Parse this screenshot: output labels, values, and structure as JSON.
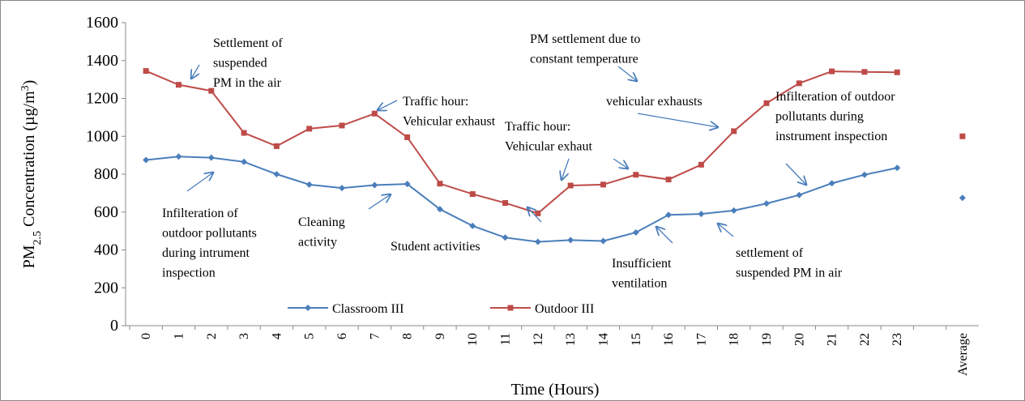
{
  "chart_data": {
    "type": "line",
    "y_label": {
      "prefix": "PM",
      "sub": "2.5",
      "middle": " Concentration (µg/m",
      "sup": "3",
      "suffix": ")"
    },
    "x_label": "Time (Hours)",
    "categories": [
      "0",
      "1",
      "2",
      "3",
      "4",
      "5",
      "6",
      "7",
      "8",
      "9",
      "10",
      "11",
      "12",
      "13",
      "14",
      "15",
      "16",
      "17",
      "18",
      "19",
      "20",
      "21",
      "22",
      "23",
      null,
      "Average"
    ],
    "series": [
      {
        "name": "Classroom III",
        "color": "#4a7ebb",
        "marker": "diamond",
        "values": [
          875,
          893,
          887,
          865,
          800,
          745,
          727,
          742,
          748,
          615,
          527,
          465,
          443,
          452,
          447,
          492,
          585,
          590,
          608,
          645,
          690,
          752,
          797,
          833,
          null,
          675
        ]
      },
      {
        "name": "Outdoor III",
        "color": "#be4b48",
        "marker": "square",
        "values": [
          1345,
          1272,
          1240,
          1018,
          948,
          1040,
          1057,
          1120,
          995,
          750,
          695,
          648,
          593,
          740,
          745,
          797,
          772,
          850,
          1027,
          1175,
          1280,
          1343,
          1340,
          1338,
          null,
          1000
        ]
      }
    ],
    "ylim": [
      0,
      1600
    ],
    "yticks": [
      0,
      200,
      400,
      600,
      800,
      1000,
      1200,
      1400,
      1600
    ],
    "grid": false,
    "annotations": [
      {
        "lines": [
          "Settlement of",
          "suspended",
          "PM in the air"
        ]
      },
      {
        "lines": [
          "Traffic hour:",
          "Vehicular exhaust"
        ]
      },
      {
        "lines": [
          "PM settlement due to",
          "constant temperature"
        ]
      },
      {
        "lines": [
          "vehicular exhausts"
        ]
      },
      {
        "lines": [
          "Infilteration of outdoor",
          "pollutants during",
          "instrument inspection"
        ]
      },
      {
        "lines": [
          "Traffic hour:",
          "Vehicular exhaut"
        ]
      },
      {
        "lines": [
          "Infilteration of",
          "outdoor pollutants",
          "during intrument",
          "inspection"
        ]
      },
      {
        "lines": [
          "Cleaning",
          "activity"
        ]
      },
      {
        "lines": [
          "Student activities"
        ]
      },
      {
        "lines": [
          "Insufficient",
          "ventilation"
        ]
      },
      {
        "lines": [
          "settlement of",
          "suspended PM in air"
        ]
      }
    ]
  }
}
